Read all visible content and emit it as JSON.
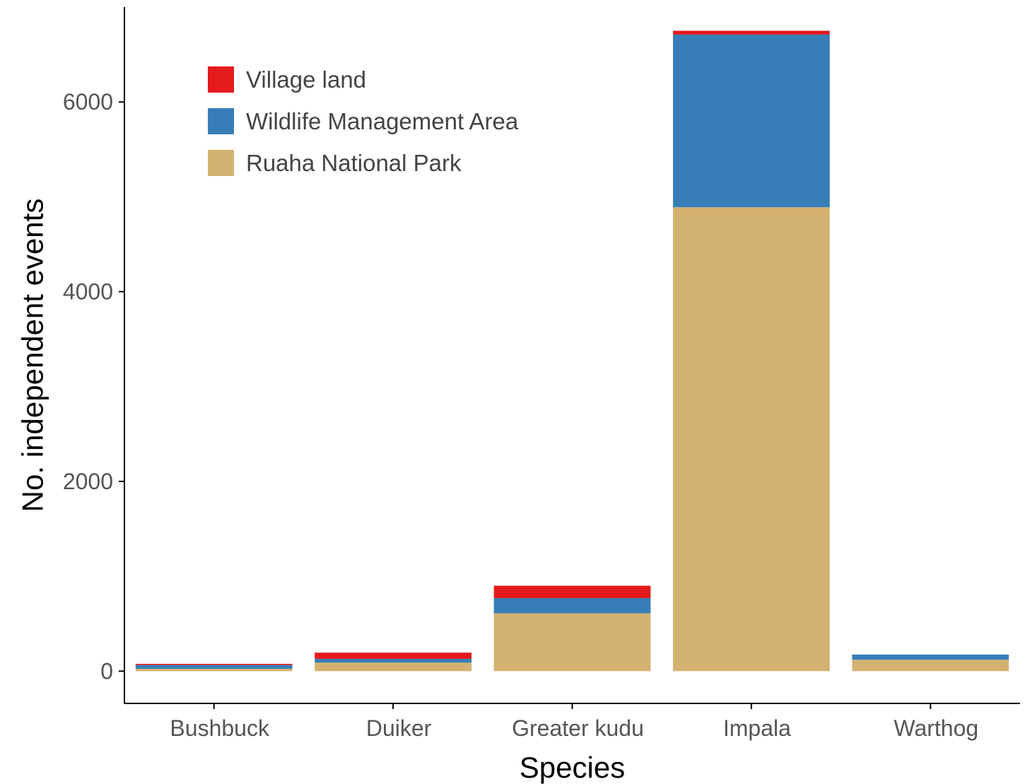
{
  "chart_data": {
    "type": "bar",
    "stacked": true,
    "xlabel": "Species",
    "ylabel": "No. independent events",
    "categories": [
      "Bushbuck",
      "Duiker",
      "Greater kudu",
      "Impala",
      "Warthog"
    ],
    "ylim": [
      -340,
      7000
    ],
    "yticks": [
      0,
      2000,
      4000,
      6000
    ],
    "ytick_labels": [
      "0",
      "2000",
      "4000",
      "6000"
    ],
    "series": [
      {
        "name": "Ruaha National Park",
        "color": "#D4B272",
        "values": [
          25,
          90,
          610,
          4890,
          120
        ]
      },
      {
        "name": "Wildlife Management Area",
        "color": "#377EB8",
        "values": [
          40,
          40,
          160,
          1820,
          55
        ]
      },
      {
        "name": "Village land",
        "color": "#E41A1C",
        "values": [
          12,
          65,
          130,
          40,
          0
        ]
      }
    ],
    "legend_order": [
      "Village land",
      "Wildlife Management Area",
      "Ruaha National Park"
    ],
    "legend_position": "top-left",
    "grid": false
  }
}
